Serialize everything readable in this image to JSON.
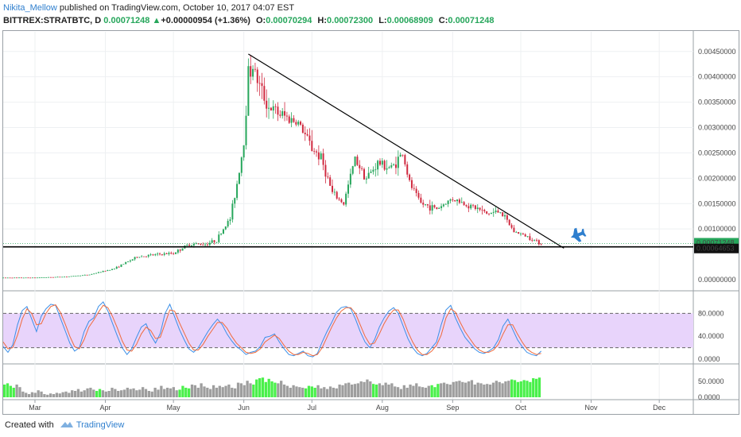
{
  "header": {
    "author": "Nikita_Mellow",
    "published_text": "published on TradingView.com, October 10, 2017 04:07 EST",
    "symbol": "BITTREX:STRATBTC, D",
    "last": "0.00071248",
    "change": "+0.00000954 (+1.36%)",
    "open_label": "O:",
    "open": "0.00070294",
    "high_label": "H:",
    "high": "0.00072300",
    "low_label": "L:",
    "low": "0.00068909",
    "close_label": "C:",
    "close": "0.00071248"
  },
  "footer": {
    "created_with": "Created with",
    "brand": "TradingView"
  },
  "colors": {
    "up": "#26a65b",
    "down": "#d0293f",
    "trendline": "#000000",
    "stoch_k": "#3b8fe8",
    "stoch_d": "#f06a3c",
    "stoch_band": "#e8d4fb",
    "volume": "#9e9e9e",
    "volume_high": "#49f04a",
    "price_tag_bg": "#ffffff"
  },
  "chart_data": [
    {
      "type": "candlestick",
      "panel": "price",
      "y_tick_labels": [
        "0.00450000",
        "0.00400000",
        "0.00350000",
        "0.00300000",
        "0.00250000",
        "0.00200000",
        "0.00150000",
        "0.00100000",
        "0.00071248",
        "0.00064653",
        "0.00000000"
      ],
      "ylim": [
        0,
        0.0047
      ],
      "x_tick_labels": [
        "Mar",
        "Apr",
        "May",
        "Jun",
        "Jul",
        "Aug",
        "Sep",
        "Oct",
        "Nov",
        "Dec"
      ],
      "last_price_label": "0.00071248",
      "support_line_label": "0.00064653",
      "annotation_icon": "airplane-icon",
      "close_path": [
        [
          "2017-02-15",
          4e-05
        ],
        [
          "2017-03-01",
          4e-05
        ],
        [
          "2017-03-15",
          6e-05
        ],
        [
          "2017-03-25",
          0.0001
        ],
        [
          "2017-04-05",
          0.00022
        ],
        [
          "2017-04-15",
          0.00045
        ],
        [
          "2017-04-25",
          0.0005
        ],
        [
          "2017-05-01",
          0.00052
        ],
        [
          "2017-05-08",
          0.0007
        ],
        [
          "2017-05-15",
          0.0007
        ],
        [
          "2017-05-20",
          0.00078
        ],
        [
          "2017-05-23",
          0.001
        ],
        [
          "2017-05-26",
          0.0012
        ],
        [
          "2017-05-29",
          0.0019
        ],
        [
          "2017-06-01",
          0.0027
        ],
        [
          "2017-06-03",
          0.0041
        ],
        [
          "2017-06-05",
          0.0042
        ],
        [
          "2017-06-08",
          0.0038
        ],
        [
          "2017-06-12",
          0.0034
        ],
        [
          "2017-06-15",
          0.0033
        ],
        [
          "2017-06-20",
          0.0032
        ],
        [
          "2017-06-25",
          0.0031
        ],
        [
          "2017-07-01",
          0.0026
        ],
        [
          "2017-07-05",
          0.0024
        ],
        [
          "2017-07-10",
          0.0017
        ],
        [
          "2017-07-15",
          0.0015
        ],
        [
          "2017-07-20",
          0.0024
        ],
        [
          "2017-07-25",
          0.002
        ],
        [
          "2017-07-30",
          0.0023
        ],
        [
          "2017-08-05",
          0.0022
        ],
        [
          "2017-08-10",
          0.0025
        ],
        [
          "2017-08-13",
          0.0019
        ],
        [
          "2017-08-18",
          0.0015
        ],
        [
          "2017-08-25",
          0.0014
        ],
        [
          "2017-09-01",
          0.0016
        ],
        [
          "2017-09-06",
          0.0015
        ],
        [
          "2017-09-12",
          0.0014
        ],
        [
          "2017-09-16",
          0.0013
        ],
        [
          "2017-09-22",
          0.00135
        ],
        [
          "2017-09-28",
          0.00095
        ],
        [
          "2017-10-04",
          0.00085
        ],
        [
          "2017-10-10",
          0.00071
        ]
      ],
      "trendline": [
        [
          "2017-06-03",
          0.00445
        ],
        [
          "2017-10-20",
          0.00062
        ]
      ]
    },
    {
      "type": "line",
      "panel": "stochastic",
      "y_tick_labels": [
        "80.0000",
        "40.0000",
        "0.0000"
      ],
      "ylim": [
        0,
        100
      ],
      "band": [
        20,
        80
      ],
      "series": [
        {
          "values": [
            22,
            12,
            25,
            60,
            85,
            92,
            70,
            48,
            75,
            88,
            96,
            94,
            72,
            50,
            28,
            14,
            20,
            48,
            66,
            72,
            92,
            100,
            84,
            62,
            40,
            20,
            8,
            18,
            38,
            56,
            62,
            42,
            28,
            45,
            80,
            96,
            74,
            52,
            34,
            18,
            12,
            20,
            34,
            48,
            60,
            70,
            60,
            44,
            32,
            22,
            16,
            8,
            12,
            14,
            22,
            38,
            40,
            44,
            30,
            18,
            8,
            6,
            10,
            14,
            6,
            4,
            10,
            30,
            48,
            64,
            82,
            90,
            92,
            88,
            70,
            48,
            30,
            20,
            34,
            56,
            72,
            84,
            90,
            80,
            58,
            36,
            20,
            10,
            6,
            10,
            20,
            30,
            60,
            86,
            94,
            72,
            54,
            38,
            28,
            18,
            12,
            10,
            14,
            20,
            34,
            58,
            70,
            52,
            34,
            22,
            12,
            8,
            6,
            14
          ]
        },
        {
          "values": [
            30,
            18,
            20,
            42,
            70,
            88,
            80,
            60,
            62,
            80,
            92,
            95,
            82,
            62,
            40,
            22,
            18,
            34,
            56,
            68,
            82,
            94,
            90,
            74,
            54,
            32,
            16,
            14,
            26,
            44,
            56,
            50,
            36,
            38,
            62,
            86,
            84,
            64,
            46,
            28,
            16,
            16,
            26,
            40,
            52,
            64,
            64,
            54,
            40,
            28,
            20,
            12,
            10,
            12,
            18,
            30,
            36,
            42,
            36,
            24,
            14,
            8,
            8,
            12,
            10,
            6,
            8,
            20,
            38,
            56,
            72,
            84,
            90,
            90,
            80,
            60,
            40,
            26,
            28,
            44,
            62,
            76,
            86,
            86,
            70,
            48,
            30,
            16,
            8,
            8,
            14,
            24,
            42,
            72,
            88,
            82,
            64,
            48,
            36,
            24,
            16,
            12,
            12,
            16,
            26,
            44,
            60,
            60,
            44,
            30,
            18,
            12,
            8,
            10
          ]
        }
      ]
    },
    {
      "type": "bar",
      "panel": "volume",
      "y_tick_labels": [
        "50.0000",
        "0.0000"
      ],
      "ylim": [
        0,
        100
      ],
      "values": [
        40,
        44,
        36,
        30,
        40,
        32,
        18,
        14,
        10,
        16,
        14,
        22,
        18,
        10,
        8,
        12,
        10,
        14,
        12,
        16,
        18,
        14,
        22,
        20,
        26,
        18,
        22,
        28,
        30,
        24,
        20,
        26,
        22,
        18,
        20,
        30,
        26,
        20,
        22,
        24,
        30,
        26,
        28,
        22,
        24,
        32,
        26,
        20,
        18,
        30,
        24,
        36,
        26,
        30,
        28,
        32,
        22,
        24,
        36,
        30,
        28,
        40,
        38,
        30,
        44,
        34,
        30,
        26,
        38,
        30,
        36,
        32,
        36,
        40,
        30,
        28,
        46,
        44,
        38,
        52,
        44,
        40,
        56,
        60,
        62,
        48,
        58,
        50,
        46,
        44,
        52,
        40,
        36,
        30,
        38,
        34,
        32,
        30,
        28,
        36,
        34,
        30,
        38,
        28,
        32,
        26,
        34,
        30,
        28,
        40,
        38,
        44,
        46,
        40,
        42,
        44,
        50,
        48,
        56,
        50,
        42,
        40,
        44,
        38,
        46,
        40,
        44,
        34,
        32,
        26,
        38,
        30,
        40,
        36,
        44,
        34,
        32,
        30,
        36,
        38,
        32,
        42,
        44,
        46,
        42,
        40,
        48,
        50,
        52,
        48,
        46,
        50,
        54,
        40,
        46,
        44,
        40,
        42,
        40,
        46,
        52,
        48,
        44,
        50,
        52,
        56,
        54,
        48,
        50,
        54,
        52,
        48,
        60,
        58,
        62
      ],
      "highlight_ranges": [
        [
          0,
          3
        ],
        [
          30,
          31
        ],
        [
          57,
          60
        ],
        [
          81,
          88
        ],
        [
          98,
          101
        ],
        [
          120,
          121
        ],
        [
          139,
          141
        ],
        [
          165,
          175
        ]
      ]
    }
  ]
}
